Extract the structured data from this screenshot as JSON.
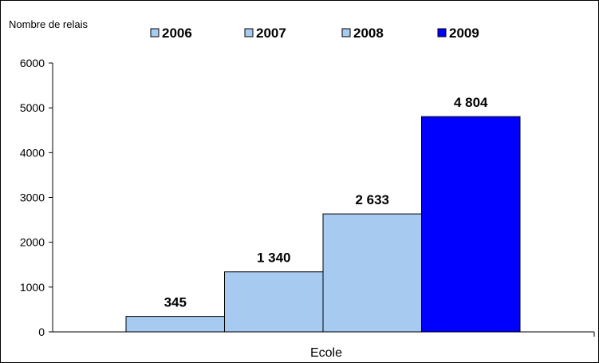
{
  "chart_data": {
    "type": "bar",
    "title": "",
    "ylabel": "Nombre de relais",
    "xlabel": "Ecole",
    "categories": [
      "Ecole"
    ],
    "series": [
      {
        "name": "2006",
        "values": [
          345
        ],
        "color": "#A6CAF0",
        "value_label": "345"
      },
      {
        "name": "2007",
        "values": [
          1340
        ],
        "color": "#A6CAF0",
        "value_label": "1 340"
      },
      {
        "name": "2008",
        "values": [
          2633
        ],
        "color": "#A6CAF0",
        "value_label": "2 633"
      },
      {
        "name": "2009",
        "values": [
          4804
        ],
        "color": "#0000FF",
        "value_label": "4 804"
      }
    ],
    "ylim": [
      0,
      6000
    ],
    "yticks": [
      0,
      1000,
      2000,
      3000,
      4000,
      5000,
      6000
    ],
    "ytick_labels": [
      "0",
      "1000",
      "2000",
      "3000",
      "4000",
      "5000",
      "6000"
    ],
    "grid": false,
    "legend_position": "top"
  }
}
